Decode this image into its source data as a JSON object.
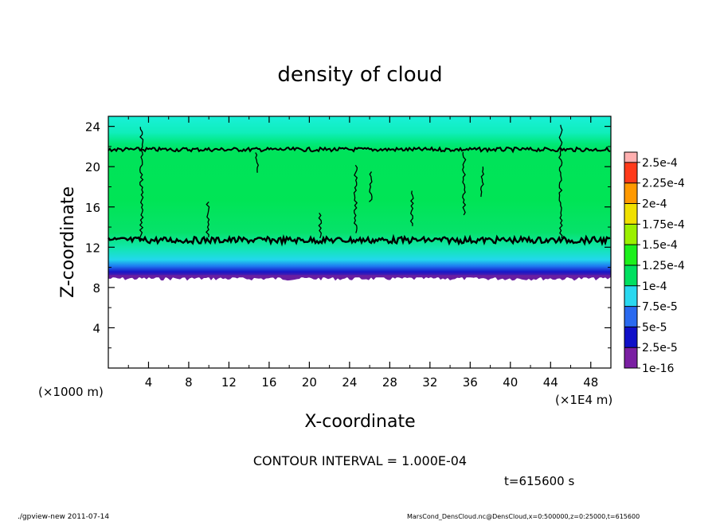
{
  "chart_data": {
    "type": "heatmap",
    "title": "density of cloud",
    "xlabel": "X-coordinate",
    "ylabel": "Z-coordinate",
    "x_unit": "(×1E4 m)",
    "y_unit": "(×1000 m)",
    "xlim": [
      0,
      50
    ],
    "ylim": [
      0,
      25
    ],
    "x_ticks": [
      "4",
      "8",
      "12",
      "16",
      "20",
      "24",
      "28",
      "32",
      "36",
      "40",
      "44",
      "48"
    ],
    "y_ticks": [
      "4",
      "8",
      "12",
      "16",
      "20",
      "24"
    ],
    "colorbar": {
      "labels": [
        "1e-16",
        "2.5e-5",
        "5e-5",
        "7.5e-5",
        "1e-4",
        "1.25e-4",
        "1.5e-4",
        "1.75e-4",
        "2e-4",
        "2.25e-4",
        "2.5e-4"
      ],
      "colors": [
        "#7a1fa2",
        "#1010c8",
        "#2a6af0",
        "#2ad8f0",
        "#00e060",
        "#1cf01c",
        "#9bf000",
        "#f0e000",
        "#ff9900",
        "#ff3a1a",
        "#ff5a5a",
        "#ffb0b0"
      ]
    },
    "layers": [
      {
        "z_min": 0,
        "z_max": 9,
        "value": "none"
      },
      {
        "z_min": 9,
        "z_max": 10,
        "value": "1e-16 to 5e-5"
      },
      {
        "z_min": 10,
        "z_max": 12.5,
        "value": "5e-5 to 1e-4"
      },
      {
        "z_min": 12.5,
        "z_max": 21.5,
        "value": "1e-4 to 1.25e-4"
      },
      {
        "z_min": 21.5,
        "z_max": 25,
        "value": "7.5e-5 to 1e-4"
      }
    ],
    "contour_levels_z": [
      12.7,
      21.7
    ]
  },
  "contour_interval": "CONTOUR INTERVAL = 1.000E-04",
  "time_label": "t=615600 s",
  "footer_left": "./gpview-new  2011-07-14",
  "footer_right": "MarsCond_DensCloud.nc@DensCloud,x=0:500000,z=0:25000,t=615600"
}
